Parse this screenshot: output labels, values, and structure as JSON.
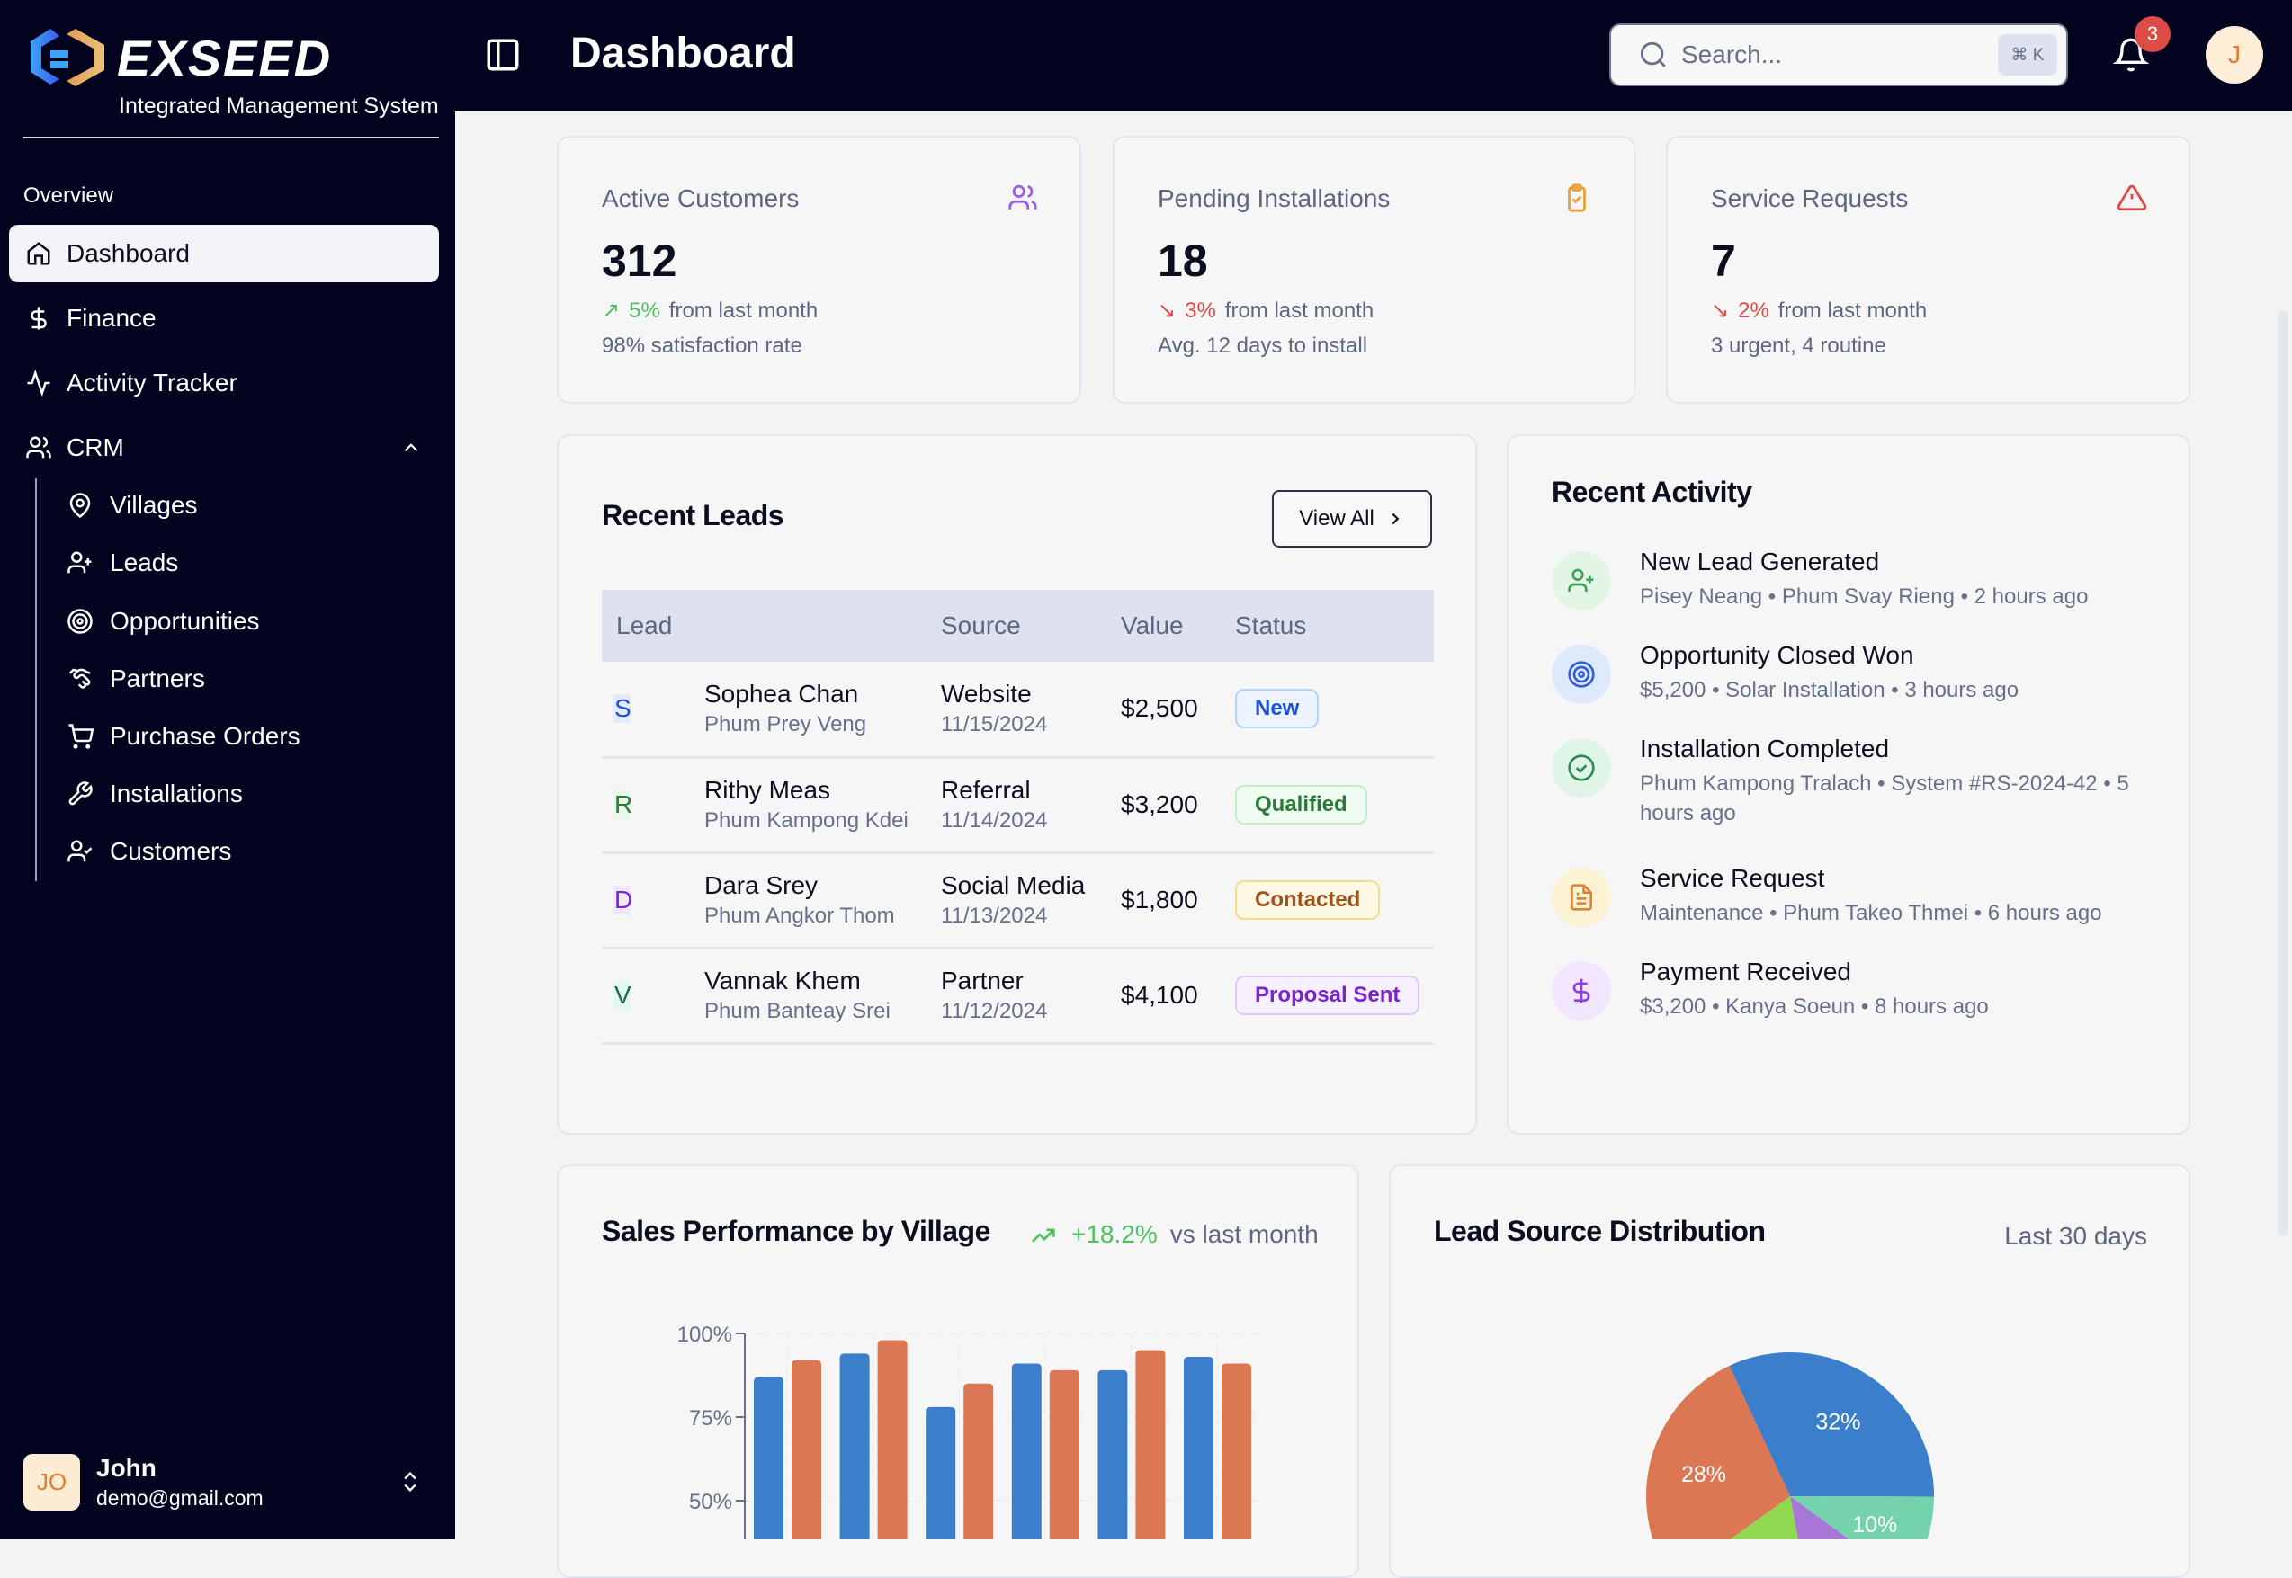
{
  "brand": {
    "name": "EXSEED",
    "subtitle": "Integrated Management System"
  },
  "sidebar": {
    "section": "Overview",
    "items": [
      {
        "label": "Dashboard",
        "icon": "home-icon",
        "active": true
      },
      {
        "label": "Finance",
        "icon": "dollar-icon"
      },
      {
        "label": "Activity Tracker",
        "icon": "activity-icon"
      },
      {
        "label": "CRM",
        "icon": "users-icon",
        "expanded": true
      }
    ],
    "crm_items": [
      {
        "label": "Villages",
        "icon": "map-pin-icon"
      },
      {
        "label": "Leads",
        "icon": "user-plus-icon"
      },
      {
        "label": "Opportunities",
        "icon": "target-icon"
      },
      {
        "label": "Partners",
        "icon": "handshake-icon"
      },
      {
        "label": "Purchase Orders",
        "icon": "cart-icon"
      },
      {
        "label": "Installations",
        "icon": "wrench-icon"
      },
      {
        "label": "Customers",
        "icon": "user-check-icon"
      }
    ],
    "user": {
      "initials": "JO",
      "name": "John",
      "email": "demo@gmail.com"
    }
  },
  "header": {
    "title": "Dashboard",
    "search_placeholder": "Search...",
    "shortcut": "⌘ K",
    "notifications": "3",
    "avatar": "J"
  },
  "stats": [
    {
      "title": "Active Customers",
      "value": "312",
      "change": "5%",
      "direction": "up",
      "change_suffix": "from last month",
      "note": "98% satisfaction rate",
      "icon": "users-icon",
      "color": "#9b5de5"
    },
    {
      "title": "Pending Installations",
      "value": "18",
      "change": "3%",
      "direction": "down",
      "change_suffix": "from last month",
      "note": "Avg. 12 days to install",
      "icon": "clipboard-check-icon",
      "color": "#e9a23b"
    },
    {
      "title": "Service Requests",
      "value": "7",
      "change": "2%",
      "direction": "down",
      "change_suffix": "from last month",
      "note": "3 urgent, 4 routine",
      "icon": "alert-triangle-icon",
      "color": "#dc4b46"
    }
  ],
  "leads": {
    "title": "Recent Leads",
    "view_all": "View All",
    "columns": [
      "Lead",
      "Source",
      "Value",
      "Status"
    ],
    "rows": [
      {
        "initial": "S",
        "name": "Sophea Chan",
        "village": "Phum Prey Veng",
        "source": "Website",
        "date": "11/15/2024",
        "value": "$2,500",
        "status": "New"
      },
      {
        "initial": "R",
        "name": "Rithy Meas",
        "village": "Phum Kampong Kdei",
        "source": "Referral",
        "date": "11/14/2024",
        "value": "$3,200",
        "status": "Qualified"
      },
      {
        "initial": "D",
        "name": "Dara Srey",
        "village": "Phum Angkor Thom",
        "source": "Social Media",
        "date": "11/13/2024",
        "value": "$1,800",
        "status": "Contacted"
      },
      {
        "initial": "V",
        "name": "Vannak Khem",
        "village": "Phum Banteay Srei",
        "source": "Partner",
        "date": "11/12/2024",
        "value": "$4,100",
        "status": "Proposal Sent"
      }
    ]
  },
  "activity": {
    "title": "Recent Activity",
    "items": [
      {
        "title": "New Lead Generated",
        "detail": "Pisey Neang • Phum Svay Rieng • 2 hours ago",
        "icon": "user-plus-icon"
      },
      {
        "title": "Opportunity Closed Won",
        "detail": "$5,200 • Solar Installation • 3 hours ago",
        "icon": "target-icon"
      },
      {
        "title": "Installation Completed",
        "detail": "Phum Kampong Tralach • System #RS-2024-42 • 5 hours ago",
        "icon": "check-circle-icon"
      },
      {
        "title": "Service Request",
        "detail": "Maintenance • Phum Takeo Thmei • 6 hours ago",
        "icon": "file-text-icon"
      },
      {
        "title": "Payment Received",
        "detail": "$3,200 • Kanya Soeun • 8 hours ago",
        "icon": "dollar-icon"
      }
    ]
  },
  "chart_data": [
    {
      "type": "bar",
      "title": "Sales Performance by Village",
      "trend": "+18.2%",
      "trend_suffix": "vs last month",
      "yticks": [
        "100%",
        "75%",
        "50%"
      ],
      "ylim": [
        50,
        100
      ],
      "grid": true,
      "series": [
        {
          "color": "#3b7fcc",
          "values": [
            87,
            94,
            78,
            91,
            89,
            93
          ]
        },
        {
          "color": "#dc7753",
          "values": [
            92,
            98,
            85,
            89,
            95,
            91
          ]
        }
      ]
    },
    {
      "type": "pie",
      "title": "Lead Source Distribution",
      "period": "Last 30 days",
      "slices": [
        {
          "value": 32,
          "label": "32%",
          "color": "#3b7fcc"
        },
        {
          "value": 10,
          "label": "10%",
          "color": "#74d3ac"
        },
        {
          "value": 12,
          "label": "",
          "color": "#a876d6"
        },
        {
          "value": 18,
          "label": "",
          "color": "#8fd84f"
        },
        {
          "value": 28,
          "label": "28%",
          "color": "#dc7753"
        }
      ]
    }
  ]
}
